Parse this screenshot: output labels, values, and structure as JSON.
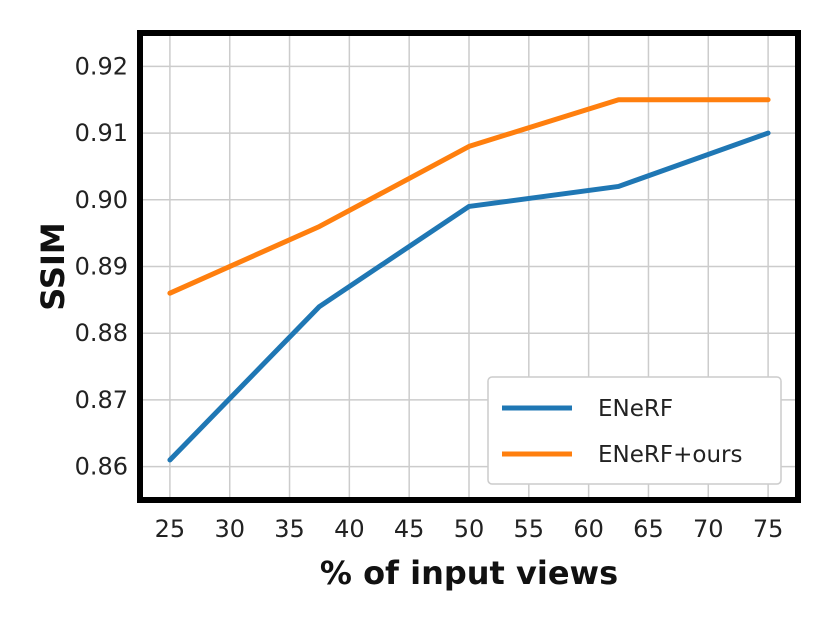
{
  "chart_data": {
    "type": "line",
    "xlabel": "% of input views",
    "ylabel": "SSIM",
    "xlim": [
      22.5,
      77.5
    ],
    "ylim": [
      0.855,
      0.925
    ],
    "xticks": [
      25,
      30,
      35,
      40,
      45,
      50,
      55,
      60,
      65,
      70,
      75
    ],
    "xtick_labels": [
      "25",
      "30",
      "35",
      "40",
      "45",
      "50",
      "55",
      "60",
      "65",
      "70",
      "75"
    ],
    "yticks": [
      0.86,
      0.87,
      0.88,
      0.89,
      0.9,
      0.91,
      0.92
    ],
    "ytick_labels": [
      "0.86",
      "0.87",
      "0.88",
      "0.89",
      "0.90",
      "0.91",
      "0.92"
    ],
    "grid": true,
    "legend_position": "bottom-right",
    "series": [
      {
        "name": "ENeRF",
        "color": "#1f77b4",
        "x": [
          25,
          37.5,
          50,
          62.5,
          75
        ],
        "y": [
          0.861,
          0.884,
          0.899,
          0.902,
          0.91
        ]
      },
      {
        "name": "ENeRF+ours",
        "color": "#ff7f0e",
        "x": [
          25,
          37.5,
          50,
          62.5,
          75
        ],
        "y": [
          0.886,
          0.896,
          0.908,
          0.915,
          0.915
        ]
      }
    ]
  }
}
